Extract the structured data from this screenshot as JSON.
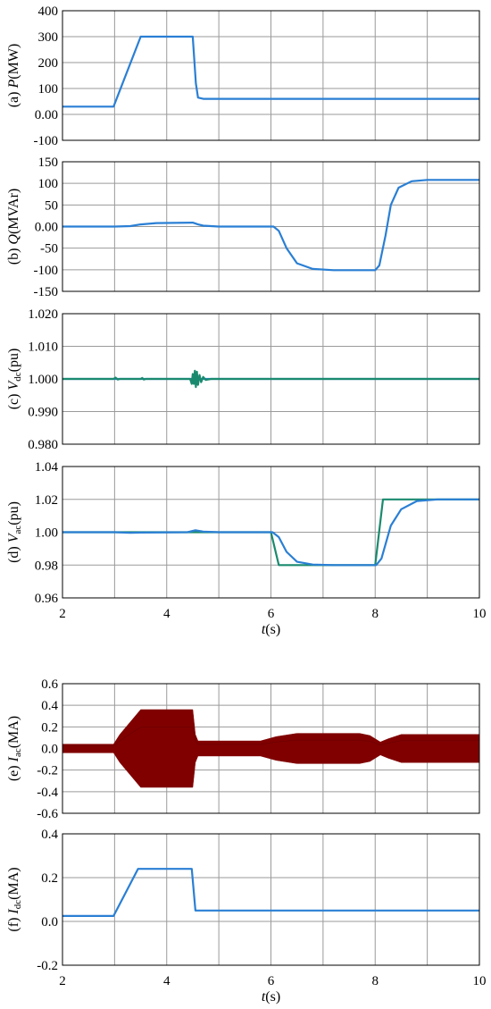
{
  "figure": {
    "x_axis_label": "t(s)",
    "x_ticks": [
      "2",
      "4",
      "6",
      "8",
      "10"
    ]
  },
  "chart_data": [
    {
      "id": "a",
      "type": "line",
      "ylabel_prefix": "(a) ",
      "ylabel_var": "P",
      "ylabel_sub": "",
      "ylabel_unit": "(MW)",
      "xlim": [
        2,
        10
      ],
      "ylim": [
        -100,
        400
      ],
      "y_ticks": [
        "400",
        "300",
        "200",
        "100",
        "0.00",
        "-100"
      ],
      "y_tick_values": [
        400,
        300,
        200,
        100,
        0,
        -100
      ],
      "show_x_ticks": false,
      "series": [
        {
          "color": "#2a7fd4",
          "points": [
            [
              2,
              30
            ],
            [
              2.98,
              30
            ],
            [
              3.5,
              300
            ],
            [
              4.5,
              300
            ],
            [
              4.56,
              120
            ],
            [
              4.6,
              65
            ],
            [
              4.7,
              60
            ],
            [
              10,
              60
            ]
          ]
        }
      ]
    },
    {
      "id": "b",
      "type": "line",
      "ylabel_prefix": "(b) ",
      "ylabel_var": "Q",
      "ylabel_sub": "",
      "ylabel_unit": "(MVAr)",
      "xlim": [
        2,
        10
      ],
      "ylim": [
        -150,
        150
      ],
      "y_ticks": [
        "150",
        "100",
        "50",
        "0.00",
        "-50",
        "-100",
        "-150"
      ],
      "y_tick_values": [
        150,
        100,
        50,
        0,
        -50,
        -100,
        -150
      ],
      "show_x_ticks": false,
      "series": [
        {
          "color": "#2a7fd4",
          "points": [
            [
              2,
              0
            ],
            [
              3,
              0
            ],
            [
              3.3,
              1
            ],
            [
              3.5,
              5
            ],
            [
              3.8,
              8
            ],
            [
              4.5,
              9
            ],
            [
              4.6,
              5
            ],
            [
              4.7,
              2
            ],
            [
              5,
              0
            ],
            [
              6.05,
              0
            ],
            [
              6.15,
              -10
            ],
            [
              6.3,
              -50
            ],
            [
              6.5,
              -85
            ],
            [
              6.8,
              -98
            ],
            [
              7.2,
              -101
            ],
            [
              8,
              -101
            ],
            [
              8.08,
              -90
            ],
            [
              8.2,
              -20
            ],
            [
              8.3,
              50
            ],
            [
              8.45,
              90
            ],
            [
              8.7,
              105
            ],
            [
              9,
              108
            ],
            [
              10,
              108
            ]
          ]
        }
      ]
    },
    {
      "id": "c",
      "type": "line",
      "ylabel_prefix": "(c) ",
      "ylabel_var": "V",
      "ylabel_sub": "dc",
      "ylabel_unit": "(pu)",
      "xlim": [
        2,
        10
      ],
      "ylim": [
        0.98,
        1.02
      ],
      "y_ticks": [
        "1.020",
        "1.010",
        "1.000",
        "0.990",
        "0.980"
      ],
      "y_tick_values": [
        1.02,
        1.01,
        1.0,
        0.99,
        0.98
      ],
      "show_x_ticks": false,
      "series": [
        {
          "color": "#2a7fd4",
          "points": [
            [
              2,
              1.0
            ],
            [
              10,
              1.0
            ]
          ]
        },
        {
          "color": "#1a8a6e",
          "points": [
            [
              2,
              1.0
            ],
            [
              2.98,
              1.0
            ],
            [
              3.02,
              1.0004
            ],
            [
              3.06,
              0.9998
            ],
            [
              3.1,
              1.0
            ],
            [
              3.5,
              1.0
            ],
            [
              3.53,
              1.0003
            ],
            [
              3.56,
              0.9998
            ],
            [
              3.6,
              1.0
            ],
            [
              4.45,
              1.0
            ],
            [
              4.48,
              0.9985
            ],
            [
              4.5,
              1.0015
            ],
            [
              4.52,
              0.9985
            ],
            [
              4.54,
              1.0025
            ],
            [
              4.56,
              0.9975
            ],
            [
              4.58,
              1.0022
            ],
            [
              4.6,
              0.9982
            ],
            [
              4.63,
              1.0012
            ],
            [
              4.66,
              0.999
            ],
            [
              4.7,
              1.0006
            ],
            [
              4.75,
              0.9997
            ],
            [
              4.85,
              1.0
            ],
            [
              10,
              1.0
            ]
          ]
        }
      ]
    },
    {
      "id": "d",
      "type": "line",
      "ylabel_prefix": "(d) ",
      "ylabel_var": "V",
      "ylabel_sub": "ac",
      "ylabel_unit": "(pu)",
      "xlim": [
        2,
        10
      ],
      "ylim": [
        0.96,
        1.04
      ],
      "y_ticks": [
        "1.04",
        "1.02",
        "1.00",
        "0.98",
        "0.96"
      ],
      "y_tick_values": [
        1.04,
        1.02,
        1.0,
        0.98,
        0.96
      ],
      "show_x_ticks": true,
      "series": [
        {
          "color": "#1a8a6e",
          "points": [
            [
              2,
              1.0
            ],
            [
              6,
              1.0
            ],
            [
              6.15,
              0.98
            ],
            [
              8,
              0.98
            ],
            [
              8.15,
              1.02
            ],
            [
              10,
              1.02
            ]
          ]
        },
        {
          "color": "#2a7fd4",
          "points": [
            [
              2,
              1.0
            ],
            [
              3,
              1.0
            ],
            [
              3.3,
              0.9996
            ],
            [
              3.5,
              0.9998
            ],
            [
              4.4,
              1.0
            ],
            [
              4.55,
              1.0012
            ],
            [
              4.7,
              1.0004
            ],
            [
              5,
              1.0
            ],
            [
              6.03,
              1.0
            ],
            [
              6.15,
              0.997
            ],
            [
              6.3,
              0.988
            ],
            [
              6.5,
              0.982
            ],
            [
              6.8,
              0.9803
            ],
            [
              7.2,
              0.98
            ],
            [
              8.02,
              0.98
            ],
            [
              8.12,
              0.984
            ],
            [
              8.3,
              1.004
            ],
            [
              8.5,
              1.014
            ],
            [
              8.8,
              1.019
            ],
            [
              9.2,
              1.02
            ],
            [
              10,
              1.02
            ]
          ]
        }
      ]
    },
    {
      "id": "e",
      "type": "area",
      "ylabel_prefix": "(e) ",
      "ylabel_var": "I",
      "ylabel_sub": "ac",
      "ylabel_unit": "(MA)",
      "xlim": [
        2,
        10
      ],
      "ylim": [
        -0.6,
        0.6
      ],
      "y_ticks": [
        "0.6",
        "0.4",
        "0.2",
        "0.0",
        "-0.2",
        "-0.4",
        "-0.6"
      ],
      "y_tick_values": [
        0.6,
        0.4,
        0.2,
        0.0,
        -0.2,
        -0.4,
        -0.6
      ],
      "show_x_ticks": false,
      "series": [
        {
          "color": "#800000",
          "envelope": [
            [
              2,
              0.04
            ],
            [
              2.98,
              0.04
            ],
            [
              3.1,
              0.13
            ],
            [
              3.5,
              0.36
            ],
            [
              4.5,
              0.36
            ],
            [
              4.55,
              0.13
            ],
            [
              4.6,
              0.07
            ],
            [
              5.8,
              0.07
            ],
            [
              6.1,
              0.11
            ],
            [
              6.5,
              0.14
            ],
            [
              7.7,
              0.14
            ],
            [
              7.9,
              0.12
            ],
            [
              8.1,
              0.06
            ],
            [
              8.25,
              0.09
            ],
            [
              8.5,
              0.13
            ],
            [
              10,
              0.13
            ]
          ]
        }
      ]
    },
    {
      "id": "f",
      "type": "line",
      "ylabel_prefix": "(f) ",
      "ylabel_var": "I",
      "ylabel_sub": "dc",
      "ylabel_unit": "(MA)",
      "xlim": [
        2,
        10
      ],
      "ylim": [
        -0.2,
        0.4
      ],
      "y_ticks": [
        "0.4",
        "0.2",
        "0.0",
        "-0.2"
      ],
      "y_tick_values": [
        0.4,
        0.2,
        0.0,
        -0.2
      ],
      "show_x_ticks": true,
      "series": [
        {
          "color": "#2a7fd4",
          "points": [
            [
              2,
              0.025
            ],
            [
              2.98,
              0.025
            ],
            [
              3.45,
              0.24
            ],
            [
              4.48,
              0.24
            ],
            [
              4.55,
              0.05
            ],
            [
              10,
              0.05
            ]
          ]
        }
      ]
    }
  ]
}
